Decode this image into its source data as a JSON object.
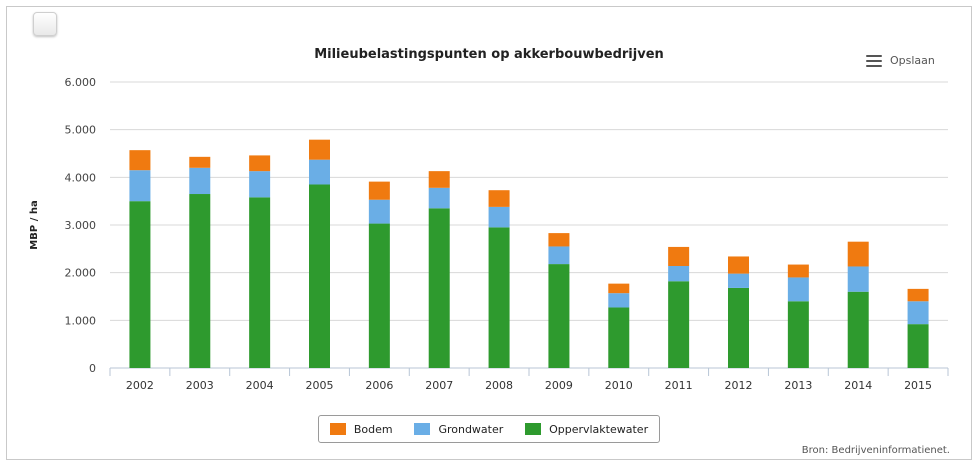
{
  "chart_data": {
    "type": "bar",
    "stacked": true,
    "title": "Milieubelastingspunten op akkerbouwbedrijven",
    "ylabel": "MBP / ha",
    "xlabel": "",
    "ylim": [
      0,
      6000
    ],
    "yticks": [
      0,
      1000,
      2000,
      3000,
      4000,
      5000,
      6000
    ],
    "ytick_labels": [
      "0",
      "1.000",
      "2.000",
      "3.000",
      "4.000",
      "5.000",
      "6.000"
    ],
    "categories": [
      "2002",
      "2003",
      "2004",
      "2005",
      "2006",
      "2007",
      "2008",
      "2009",
      "2010",
      "2011",
      "2012",
      "2013",
      "2014",
      "2015"
    ],
    "series": [
      {
        "name": "Oppervlaktewater",
        "color": "#2e9a2e",
        "values": [
          3500,
          3650,
          3580,
          3850,
          3030,
          3350,
          2950,
          2180,
          1270,
          1820,
          1680,
          1400,
          1600,
          920
        ]
      },
      {
        "name": "Grondwater",
        "color": "#6aaee6",
        "values": [
          650,
          550,
          550,
          520,
          500,
          430,
          430,
          370,
          300,
          320,
          300,
          500,
          530,
          480
        ]
      },
      {
        "name": "Bodem",
        "color": "#f07a10",
        "values": [
          420,
          230,
          330,
          420,
          380,
          350,
          350,
          280,
          200,
          400,
          360,
          270,
          520,
          260
        ]
      }
    ],
    "legend_order": [
      "Bodem",
      "Grondwater",
      "Oppervlaktewater"
    ],
    "legend_position": "bottom-center",
    "grid": true
  },
  "toolbar": {
    "export_label": "Opslaan",
    "export_icon": "hamburger-icon"
  },
  "source": "Bron: Bedrijveninformatienet."
}
